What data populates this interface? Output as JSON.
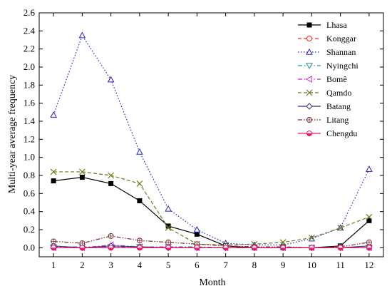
{
  "chart_data": {
    "type": "line",
    "xlabel": "Month",
    "ylabel": "Multi-year average frequency",
    "x": [
      1,
      2,
      3,
      4,
      5,
      6,
      7,
      8,
      9,
      10,
      11,
      12
    ],
    "xlim": [
      0.5,
      12.5
    ],
    "ylim": [
      -0.1,
      2.6
    ],
    "yticks": [
      0.0,
      0.2,
      0.4,
      0.6,
      0.8,
      1.0,
      1.2,
      1.4,
      1.6,
      1.8,
      2.0,
      2.2,
      2.4,
      2.6
    ],
    "ytick_labels": [
      "0.0",
      "0.2",
      "0.4",
      "0.6",
      "0.8",
      "1.0",
      "1.2",
      "1.4",
      "1.6",
      "1.8",
      "2.0",
      "2.2",
      "2.4",
      "2.6"
    ],
    "xtick_labels": [
      "1",
      "2",
      "3",
      "4",
      "5",
      "6",
      "7",
      "8",
      "9",
      "10",
      "11",
      "12"
    ],
    "grid": false,
    "legend_position": "top-right",
    "series": [
      {
        "name": "Lhasa",
        "color": "#000000",
        "dash": "solid",
        "marker": "square-filled",
        "values": [
          0.74,
          0.78,
          0.71,
          0.52,
          0.24,
          0.15,
          0.02,
          0.0,
          0.0,
          0.0,
          0.02,
          0.3
        ]
      },
      {
        "name": "Konggar",
        "color": "#e8302a",
        "dash": "dashed",
        "marker": "circle-open",
        "values": [
          0.0,
          0.0,
          0.0,
          0.0,
          0.0,
          0.0,
          0.0,
          0.0,
          0.0,
          0.0,
          0.0,
          0.0
        ]
      },
      {
        "name": "Shannan",
        "color": "#2222cc",
        "dash": "dotted",
        "marker": "triangle-open",
        "values": [
          1.47,
          2.35,
          1.86,
          1.06,
          0.43,
          0.2,
          0.05,
          0.03,
          0.03,
          0.1,
          0.22,
          0.87
        ]
      },
      {
        "name": "Nyingchi",
        "color": "#1f8f8f",
        "dash": "dashdot",
        "marker": "triangle-down-open",
        "values": [
          0.01,
          0.01,
          0.01,
          0.01,
          0.01,
          0.01,
          0.0,
          0.0,
          0.0,
          0.0,
          0.0,
          0.0
        ]
      },
      {
        "name": "Bomê",
        "color": "#d020d0",
        "dash": "dashdot",
        "marker": "triangle-left-open",
        "values": [
          0.0,
          0.0,
          0.03,
          0.01,
          0.01,
          0.0,
          0.0,
          0.0,
          0.0,
          0.0,
          0.0,
          0.0
        ]
      },
      {
        "name": "Qamdo",
        "color": "#6b7d1a",
        "dash": "dashed",
        "marker": "x-cross",
        "values": [
          0.84,
          0.84,
          0.8,
          0.71,
          0.22,
          0.04,
          0.03,
          0.04,
          0.06,
          0.11,
          0.22,
          0.34
        ]
      },
      {
        "name": "Batang",
        "color": "#35357a",
        "dash": "solid",
        "marker": "diamond-open",
        "values": [
          0.02,
          0.0,
          0.02,
          0.01,
          0.0,
          0.0,
          0.0,
          0.0,
          0.0,
          0.0,
          0.0,
          0.02
        ]
      },
      {
        "name": "Litang",
        "color": "#7a2f2f",
        "dash": "dashdotdot",
        "marker": "circle-cross",
        "values": [
          0.07,
          0.05,
          0.13,
          0.08,
          0.06,
          0.04,
          0.02,
          0.01,
          0.01,
          0.0,
          0.01,
          0.06
        ]
      },
      {
        "name": "Chengdu",
        "color": "#e8186a",
        "dash": "solid",
        "marker": "circle-half",
        "values": [
          0.0,
          0.0,
          0.0,
          0.0,
          0.0,
          0.0,
          0.0,
          0.0,
          0.0,
          0.0,
          0.0,
          0.0
        ]
      }
    ]
  }
}
